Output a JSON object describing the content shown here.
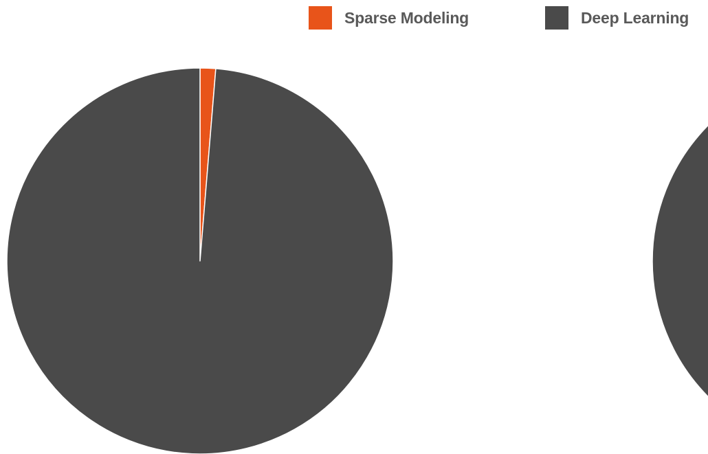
{
  "legend": {
    "items": [
      {
        "label": "Sparse Modeling",
        "color": "#e8541a"
      },
      {
        "label": "Deep Learning",
        "color": "#4a4a4a"
      }
    ]
  },
  "chart_data": [
    {
      "type": "pie",
      "title": "",
      "legend": "top-right",
      "slices": [
        {
          "label": "Sparse Modeling",
          "value": 1.3,
          "color": "#e8541a"
        },
        {
          "label": "Deep Learning",
          "value": 98.7,
          "color": "#4a4a4a"
        }
      ]
    },
    {
      "type": "pie",
      "title": "",
      "partially_visible": true,
      "slices": [
        {
          "label": "Deep Learning",
          "value": 100,
          "color": "#4a4a4a"
        }
      ]
    }
  ]
}
